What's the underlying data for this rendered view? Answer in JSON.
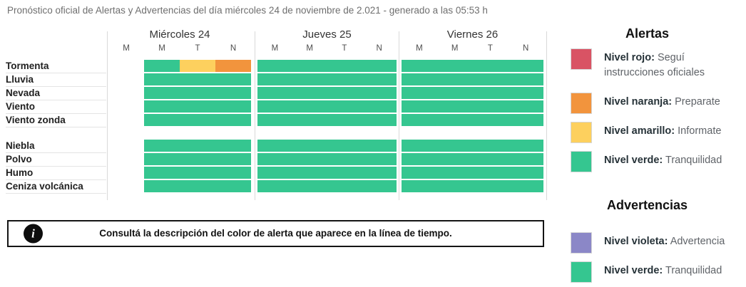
{
  "title": "Pronóstico oficial de Alertas y Advertencias del día miércoles 24 de noviembre de 2.021 - generado a las 05:53 h",
  "colors": {
    "green": "#35c690",
    "yellow": "#fdd05e",
    "orange": "#f2943d",
    "red": "#d95364",
    "violet": "#8b87c7"
  },
  "forecast": {
    "period_labels": [
      "M",
      "M",
      "T",
      "N"
    ],
    "days": [
      {
        "label": "Miércoles 24"
      },
      {
        "label": "Jueves 25"
      },
      {
        "label": "Viernes 26"
      }
    ],
    "groups": [
      {
        "rows": [
          {
            "label": "Tormenta",
            "cells": [
              [
                "none",
                "green",
                "yellow",
                "orange"
              ],
              [
                "green",
                "green",
                "green",
                "green"
              ],
              [
                "green",
                "green",
                "green",
                "green"
              ]
            ]
          },
          {
            "label": "Lluvia",
            "cells": [
              [
                "none",
                "green",
                "green",
                "green"
              ],
              [
                "green",
                "green",
                "green",
                "green"
              ],
              [
                "green",
                "green",
                "green",
                "green"
              ]
            ]
          },
          {
            "label": "Nevada",
            "cells": [
              [
                "none",
                "green",
                "green",
                "green"
              ],
              [
                "green",
                "green",
                "green",
                "green"
              ],
              [
                "green",
                "green",
                "green",
                "green"
              ]
            ]
          },
          {
            "label": "Viento",
            "cells": [
              [
                "none",
                "green",
                "green",
                "green"
              ],
              [
                "green",
                "green",
                "green",
                "green"
              ],
              [
                "green",
                "green",
                "green",
                "green"
              ]
            ]
          },
          {
            "label": "Viento zonda",
            "cells": [
              [
                "none",
                "green",
                "green",
                "green"
              ],
              [
                "green",
                "green",
                "green",
                "green"
              ],
              [
                "green",
                "green",
                "green",
                "green"
              ]
            ]
          }
        ]
      },
      {
        "rows": [
          {
            "label": "Niebla",
            "cells": [
              [
                "none",
                "green",
                "green",
                "green"
              ],
              [
                "green",
                "green",
                "green",
                "green"
              ],
              [
                "green",
                "green",
                "green",
                "green"
              ]
            ]
          },
          {
            "label": "Polvo",
            "cells": [
              [
                "none",
                "green",
                "green",
                "green"
              ],
              [
                "green",
                "green",
                "green",
                "green"
              ],
              [
                "green",
                "green",
                "green",
                "green"
              ]
            ]
          },
          {
            "label": "Humo",
            "cells": [
              [
                "none",
                "green",
                "green",
                "green"
              ],
              [
                "green",
                "green",
                "green",
                "green"
              ],
              [
                "green",
                "green",
                "green",
                "green"
              ]
            ]
          },
          {
            "label": "Ceniza volcánica",
            "cells": [
              [
                "none",
                "green",
                "green",
                "green"
              ],
              [
                "green",
                "green",
                "green",
                "green"
              ],
              [
                "green",
                "green",
                "green",
                "green"
              ]
            ]
          }
        ]
      }
    ]
  },
  "info": {
    "icon_glyph": "i",
    "text": "Consultá la descripción del color de alerta que aparece en la línea de tiempo."
  },
  "legend": {
    "sections": [
      {
        "title": "Alertas",
        "items": [
          {
            "color": "red",
            "label": "Nivel rojo:",
            "desc": "Seguí instrucciones oficiales"
          },
          {
            "color": "orange",
            "label": "Nivel naranja:",
            "desc": "Preparate"
          },
          {
            "color": "yellow",
            "label": "Nivel amarillo:",
            "desc": "Informate"
          },
          {
            "color": "green",
            "label": "Nivel verde:",
            "desc": "Tranquilidad"
          }
        ]
      },
      {
        "title": "Advertencias",
        "items": [
          {
            "color": "violet",
            "label": "Nivel violeta:",
            "desc": "Advertencia"
          },
          {
            "color": "green",
            "label": "Nivel verde:",
            "desc": "Tranquilidad"
          }
        ]
      }
    ]
  }
}
